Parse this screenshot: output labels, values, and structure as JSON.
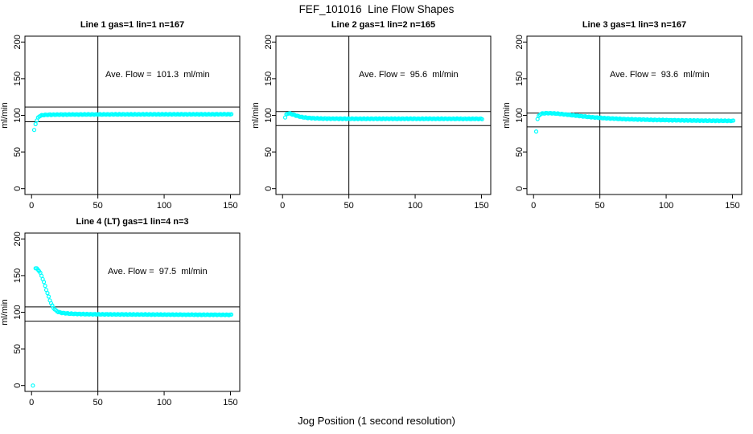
{
  "main": {
    "title": "FEF_101016  Line Flow Shapes",
    "xlabel": "Jog Position (1 second resolution)"
  },
  "colors": {
    "marker": "#00FFFF",
    "axis": "#000000",
    "background": "#FFFFFF"
  },
  "axes": {
    "xlim": [
      -5,
      157
    ],
    "ylim": [
      -8,
      208
    ],
    "x_ticks": [
      0,
      50,
      100,
      150
    ],
    "y_ticks": [
      0,
      50,
      100,
      150,
      200
    ],
    "ylabel": "ml/min",
    "grid": false
  },
  "chart_data": [
    {
      "type": "scatter",
      "title": "Line 1 gas=1 lin=1 n=167",
      "gas": 1,
      "lin": 1,
      "n": 167,
      "ave_flow_ml_min": 101.3,
      "ave_label": "Ave. Flow =  101.3  ml/min",
      "annotation_xy": [
        95,
        155
      ],
      "vline_x": 50,
      "ref_lines_y": [
        91.2,
        111.4
      ],
      "series_keypoints": [
        [
          4,
          93
        ],
        [
          5,
          97
        ],
        [
          6,
          99
        ],
        [
          8,
          100.3
        ],
        [
          12,
          100.8
        ],
        [
          20,
          101
        ],
        [
          40,
          101.2
        ],
        [
          70,
          101.3
        ],
        [
          110,
          101.4
        ],
        [
          151,
          101.5
        ]
      ],
      "outliers": [
        [
          2,
          80
        ],
        [
          3,
          88
        ]
      ]
    },
    {
      "type": "scatter",
      "title": "Line 2 gas=1 lin=2 n=165",
      "gas": 1,
      "lin": 2,
      "n": 165,
      "ave_flow_ml_min": 95.6,
      "ave_label": "Ave. Flow =  95.6  ml/min",
      "annotation_xy": [
        95,
        155
      ],
      "vline_x": 50,
      "ref_lines_y": [
        86.0,
        105.2
      ],
      "series_keypoints": [
        [
          2,
          97
        ],
        [
          3,
          101.5
        ],
        [
          4,
          102.6
        ],
        [
          5,
          102.8
        ],
        [
          6,
          102.2
        ],
        [
          8,
          101
        ],
        [
          10,
          99.8
        ],
        [
          13,
          98.3
        ],
        [
          16,
          97.2
        ],
        [
          20,
          96.4
        ],
        [
          25,
          95.9
        ],
        [
          30,
          95.6
        ],
        [
          40,
          95.4
        ],
        [
          60,
          95.3
        ],
        [
          100,
          95.3
        ],
        [
          151,
          95.2
        ]
      ],
      "outliers": []
    },
    {
      "type": "scatter",
      "title": "Line 3 gas=1 lin=3 n=167",
      "gas": 1,
      "lin": 3,
      "n": 167,
      "ave_flow_ml_min": 93.6,
      "ave_label": "Ave. Flow =  93.6  ml/min",
      "annotation_xy": [
        95,
        155
      ],
      "vline_x": 50,
      "ref_lines_y": [
        84.2,
        103.0
      ],
      "series_keypoints": [
        [
          3,
          95
        ],
        [
          4,
          99.5
        ],
        [
          5,
          101.5
        ],
        [
          6,
          102.4
        ],
        [
          8,
          102.8
        ],
        [
          10,
          103
        ],
        [
          14,
          102.8
        ],
        [
          18,
          102.3
        ],
        [
          25,
          101
        ],
        [
          35,
          99
        ],
        [
          45,
          97.3
        ],
        [
          55,
          96
        ],
        [
          70,
          94.8
        ],
        [
          90,
          93.8
        ],
        [
          110,
          93.2
        ],
        [
          130,
          92.8
        ],
        [
          151,
          92.5
        ]
      ],
      "outliers": [
        [
          2,
          78
        ]
      ]
    },
    {
      "type": "scatter",
      "title": "Line 4 (LT) gas=1 lin=4 n=3",
      "gas": 1,
      "lin": 4,
      "n": 3,
      "ave_flow_ml_min": 97.5,
      "ave_label": "Ave. Flow =  97.5  ml/min",
      "annotation_xy": [
        95,
        155
      ],
      "vline_x": 50,
      "ref_lines_y": [
        87.8,
        107.3
      ],
      "series_keypoints": [
        [
          3,
          160
        ],
        [
          4,
          159.5
        ],
        [
          5,
          158
        ],
        [
          6,
          155.5
        ],
        [
          7,
          152
        ],
        [
          8,
          147.5
        ],
        [
          9,
          142.5
        ],
        [
          10,
          137
        ],
        [
          11,
          131.5
        ],
        [
          12,
          126
        ],
        [
          13,
          120.5
        ],
        [
          14,
          115.5
        ],
        [
          15,
          111
        ],
        [
          16,
          107.5
        ],
        [
          17,
          105
        ],
        [
          18,
          103
        ],
        [
          19,
          101.5
        ],
        [
          20,
          100.5
        ],
        [
          22,
          99.5
        ],
        [
          25,
          98.7
        ],
        [
          28,
          98.2
        ],
        [
          32,
          97.8
        ],
        [
          40,
          97.4
        ],
        [
          50,
          97.2
        ],
        [
          70,
          97
        ],
        [
          100,
          96.8
        ],
        [
          130,
          96.6
        ],
        [
          151,
          96.5
        ]
      ],
      "outliers": [
        [
          1,
          0
        ]
      ]
    }
  ]
}
